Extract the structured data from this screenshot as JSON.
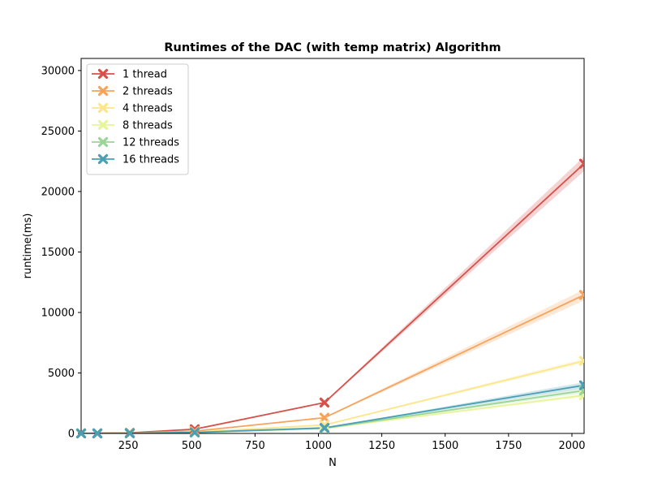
{
  "chart_data": {
    "type": "line",
    "title": "Runtimes of the DAC (with temp matrix) Algorithm",
    "xlabel": "N",
    "ylabel": "runtime(ms)",
    "xlim": [
      64,
      2048
    ],
    "ylim": [
      0,
      31000
    ],
    "xticks": [
      250,
      500,
      750,
      1000,
      1250,
      1500,
      1750,
      2000
    ],
    "yticks": [
      0,
      5000,
      10000,
      15000,
      20000,
      25000,
      30000
    ],
    "grid": false,
    "legend_position": "top-left",
    "x": [
      64,
      128,
      256,
      512,
      1024,
      2048
    ],
    "series": [
      {
        "name": "1 thread",
        "color": "#d7504a",
        "values": [
          3,
          15,
          50,
          350,
          2550,
          22300
        ],
        "band": [
          0,
          0,
          0,
          20,
          40,
          600
        ]
      },
      {
        "name": "2 threads",
        "color": "#f7a35c",
        "values": [
          2,
          8,
          30,
          190,
          1300,
          11450
        ],
        "band": [
          0,
          0,
          0,
          15,
          30,
          450
        ]
      },
      {
        "name": "4 threads",
        "color": "#fde68a",
        "values": [
          1,
          5,
          18,
          110,
          700,
          6000
        ],
        "band": [
          0,
          0,
          0,
          10,
          20,
          200
        ]
      },
      {
        "name": "8 threads",
        "color": "#e6f598",
        "values": [
          1,
          4,
          12,
          75,
          420,
          3150
        ],
        "band": [
          0,
          0,
          0,
          8,
          15,
          150
        ]
      },
      {
        "name": "12 threads",
        "color": "#99d594",
        "values": [
          1,
          4,
          12,
          75,
          420,
          3550
        ],
        "band": [
          0,
          0,
          0,
          8,
          15,
          200
        ]
      },
      {
        "name": "16 threads",
        "color": "#4a9fb5",
        "values": [
          1,
          4,
          14,
          85,
          460,
          3980
        ],
        "band": [
          0,
          0,
          0,
          8,
          20,
          250
        ]
      }
    ]
  }
}
